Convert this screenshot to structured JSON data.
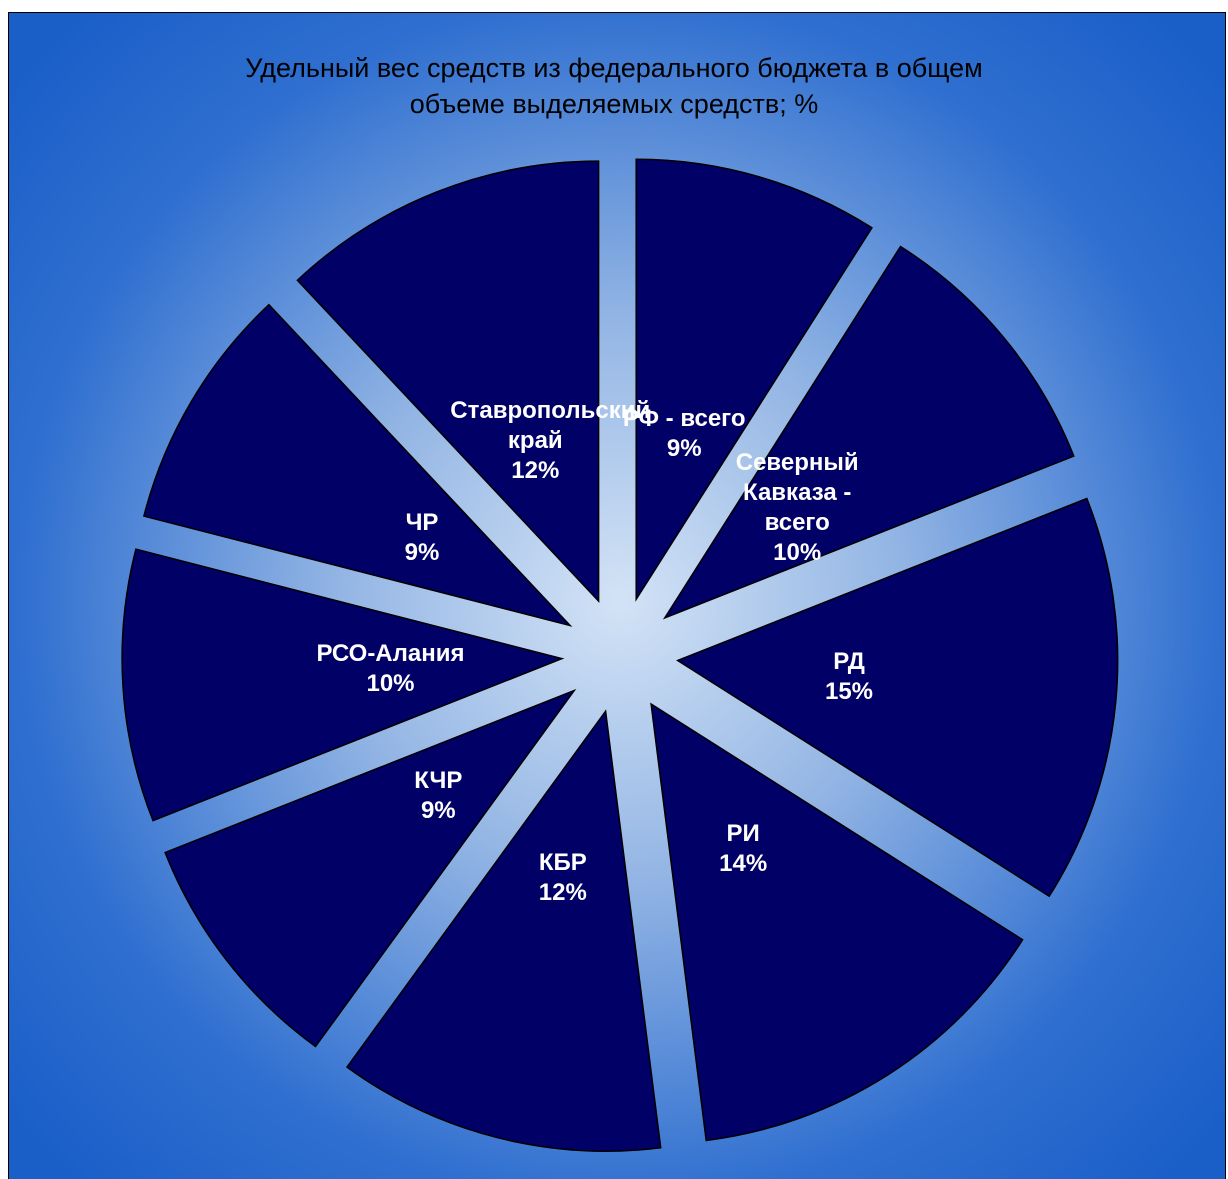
{
  "chart_data": {
    "type": "pie",
    "title": "Удельный вес средств из федерального бюджета  в общем объеме выделяемых средств; %",
    "title_lines": [
      "Удельный вес средств из федерального бюджета  в общем",
      "объеме выделяемых средств; %"
    ],
    "slices": [
      {
        "label": "РФ - всего",
        "value": 9,
        "value_label": "9%"
      },
      {
        "label": "Северный Кавказа - всего",
        "value": 10,
        "value_label": "10%"
      },
      {
        "label": "РД",
        "value": 15,
        "value_label": "15%"
      },
      {
        "label": "РИ",
        "value": 14,
        "value_label": "14%"
      },
      {
        "label": "КБР",
        "value": 12,
        "value_label": "12%"
      },
      {
        "label": "КЧР",
        "value": 9,
        "value_label": "9%"
      },
      {
        "label": "РСО-Алания",
        "value": 10,
        "value_label": "10%"
      },
      {
        "label": "ЧР",
        "value": 9,
        "value_label": "9%"
      },
      {
        "label": "Ставропольский край",
        "value": 12,
        "value_label": "12%"
      }
    ],
    "start_angle": "12 o'clock",
    "direction": "clockwise",
    "exploded": true,
    "legend": "none",
    "colors": {
      "slice_fill": "#000066",
      "slice_stroke": "#000000",
      "background_edge": "#1a5ec8",
      "background_center": "#cfe0f5",
      "label_text": "#ffffff",
      "title_text": "#000000"
    }
  }
}
